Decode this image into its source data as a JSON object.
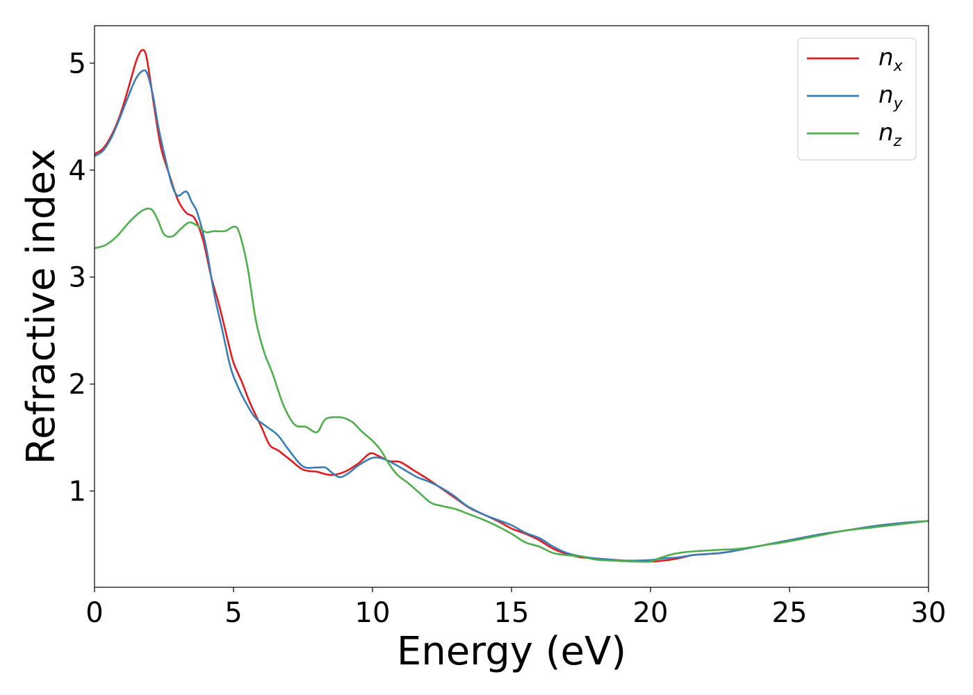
{
  "chart_data": {
    "type": "line",
    "title": "",
    "xlabel": "Energy (eV)",
    "ylabel": "Refractive index",
    "xlim": [
      0,
      30
    ],
    "ylim": [
      0.1,
      5.35
    ],
    "xticks": [
      0,
      5,
      10,
      15,
      20,
      25,
      30
    ],
    "yticks": [
      1,
      2,
      3,
      4,
      5
    ],
    "grid": false,
    "legend_position": "top-right",
    "series": [
      {
        "name": "n",
        "subscript": "x",
        "color": "#e41a1c",
        "points": [
          [
            0,
            4.15
          ],
          [
            0.3,
            4.2
          ],
          [
            0.6,
            4.32
          ],
          [
            0.9,
            4.5
          ],
          [
            1.2,
            4.75
          ],
          [
            1.5,
            5.02
          ],
          [
            1.7,
            5.12
          ],
          [
            1.85,
            5.08
          ],
          [
            2.0,
            4.85
          ],
          [
            2.2,
            4.5
          ],
          [
            2.4,
            4.2
          ],
          [
            2.7,
            3.95
          ],
          [
            3.0,
            3.72
          ],
          [
            3.3,
            3.6
          ],
          [
            3.6,
            3.55
          ],
          [
            3.9,
            3.35
          ],
          [
            4.2,
            3.0
          ],
          [
            4.5,
            2.72
          ],
          [
            4.8,
            2.4
          ],
          [
            5.0,
            2.2
          ],
          [
            5.3,
            2.02
          ],
          [
            5.6,
            1.82
          ],
          [
            6.0,
            1.6
          ],
          [
            6.3,
            1.43
          ],
          [
            6.6,
            1.38
          ],
          [
            7.0,
            1.3
          ],
          [
            7.5,
            1.2
          ],
          [
            8.0,
            1.18
          ],
          [
            8.5,
            1.15
          ],
          [
            9.0,
            1.18
          ],
          [
            9.5,
            1.26
          ],
          [
            9.9,
            1.35
          ],
          [
            10.2,
            1.33
          ],
          [
            10.6,
            1.28
          ],
          [
            11.0,
            1.27
          ],
          [
            11.5,
            1.19
          ],
          [
            12.0,
            1.11
          ],
          [
            12.5,
            1.02
          ],
          [
            13.0,
            0.93
          ],
          [
            13.5,
            0.84
          ],
          [
            14.0,
            0.78
          ],
          [
            14.5,
            0.72
          ],
          [
            15.0,
            0.65
          ],
          [
            15.5,
            0.6
          ],
          [
            16.0,
            0.54
          ],
          [
            16.5,
            0.46
          ],
          [
            17.0,
            0.41
          ],
          [
            17.5,
            0.38
          ],
          [
            18.0,
            0.37
          ],
          [
            18.5,
            0.36
          ],
          [
            19.0,
            0.35
          ],
          [
            19.5,
            0.345
          ],
          [
            20.0,
            0.34
          ],
          [
            20.5,
            0.35
          ],
          [
            21.0,
            0.37
          ],
          [
            21.5,
            0.4
          ],
          [
            22.0,
            0.41
          ],
          [
            22.5,
            0.42
          ],
          [
            23.0,
            0.44
          ],
          [
            24.0,
            0.49
          ],
          [
            25.0,
            0.54
          ],
          [
            26.0,
            0.59
          ],
          [
            27.0,
            0.63
          ],
          [
            28.0,
            0.67
          ],
          [
            29.0,
            0.7
          ],
          [
            30.0,
            0.72
          ]
        ]
      },
      {
        "name": "n",
        "subscript": "y",
        "color": "#377eb8",
        "points": [
          [
            0,
            4.13
          ],
          [
            0.3,
            4.18
          ],
          [
            0.6,
            4.3
          ],
          [
            0.9,
            4.48
          ],
          [
            1.2,
            4.68
          ],
          [
            1.5,
            4.86
          ],
          [
            1.75,
            4.93
          ],
          [
            1.9,
            4.9
          ],
          [
            2.1,
            4.7
          ],
          [
            2.3,
            4.4
          ],
          [
            2.6,
            4.05
          ],
          [
            2.8,
            3.85
          ],
          [
            3.0,
            3.76
          ],
          [
            3.3,
            3.8
          ],
          [
            3.5,
            3.7
          ],
          [
            3.7,
            3.6
          ],
          [
            4.0,
            3.3
          ],
          [
            4.3,
            2.85
          ],
          [
            4.6,
            2.5
          ],
          [
            4.9,
            2.15
          ],
          [
            5.2,
            1.95
          ],
          [
            5.5,
            1.8
          ],
          [
            5.8,
            1.68
          ],
          [
            6.2,
            1.6
          ],
          [
            6.6,
            1.52
          ],
          [
            7.0,
            1.38
          ],
          [
            7.5,
            1.23
          ],
          [
            8.0,
            1.22
          ],
          [
            8.3,
            1.22
          ],
          [
            8.5,
            1.18
          ],
          [
            8.8,
            1.13
          ],
          [
            9.1,
            1.16
          ],
          [
            9.5,
            1.24
          ],
          [
            10.0,
            1.31
          ],
          [
            10.4,
            1.3
          ],
          [
            10.8,
            1.25
          ],
          [
            11.2,
            1.19
          ],
          [
            11.6,
            1.13
          ],
          [
            12.0,
            1.09
          ],
          [
            12.4,
            1.04
          ],
          [
            12.9,
            0.96
          ],
          [
            13.4,
            0.86
          ],
          [
            14.0,
            0.78
          ],
          [
            14.5,
            0.73
          ],
          [
            15.0,
            0.68
          ],
          [
            15.5,
            0.61
          ],
          [
            16.0,
            0.56
          ],
          [
            16.5,
            0.48
          ],
          [
            17.0,
            0.42
          ],
          [
            17.5,
            0.39
          ],
          [
            18.0,
            0.37
          ],
          [
            18.5,
            0.36
          ],
          [
            19.0,
            0.35
          ],
          [
            19.5,
            0.35
          ],
          [
            20.0,
            0.355
          ],
          [
            20.5,
            0.37
          ],
          [
            21.0,
            0.38
          ],
          [
            21.5,
            0.4
          ],
          [
            22.0,
            0.41
          ],
          [
            22.5,
            0.42
          ],
          [
            23.0,
            0.44
          ],
          [
            24.0,
            0.49
          ],
          [
            25.0,
            0.54
          ],
          [
            26.0,
            0.59
          ],
          [
            27.0,
            0.63
          ],
          [
            28.0,
            0.67
          ],
          [
            29.0,
            0.7
          ],
          [
            30.0,
            0.72
          ]
        ]
      },
      {
        "name": "n",
        "subscript": "z",
        "color": "#4daf4a",
        "points": [
          [
            0,
            3.27
          ],
          [
            0.4,
            3.3
          ],
          [
            0.8,
            3.38
          ],
          [
            1.2,
            3.5
          ],
          [
            1.6,
            3.6
          ],
          [
            1.9,
            3.64
          ],
          [
            2.1,
            3.62
          ],
          [
            2.3,
            3.52
          ],
          [
            2.5,
            3.4
          ],
          [
            2.8,
            3.38
          ],
          [
            3.1,
            3.45
          ],
          [
            3.4,
            3.51
          ],
          [
            3.7,
            3.48
          ],
          [
            4.0,
            3.42
          ],
          [
            4.3,
            3.43
          ],
          [
            4.7,
            3.43
          ],
          [
            5.0,
            3.47
          ],
          [
            5.2,
            3.42
          ],
          [
            5.5,
            3.1
          ],
          [
            5.8,
            2.6
          ],
          [
            6.1,
            2.3
          ],
          [
            6.4,
            2.1
          ],
          [
            6.8,
            1.8
          ],
          [
            7.2,
            1.62
          ],
          [
            7.6,
            1.6
          ],
          [
            8.0,
            1.55
          ],
          [
            8.3,
            1.67
          ],
          [
            8.7,
            1.69
          ],
          [
            9.0,
            1.68
          ],
          [
            9.3,
            1.64
          ],
          [
            9.6,
            1.56
          ],
          [
            10.0,
            1.47
          ],
          [
            10.3,
            1.38
          ],
          [
            10.6,
            1.25
          ],
          [
            10.9,
            1.15
          ],
          [
            11.3,
            1.07
          ],
          [
            11.7,
            0.98
          ],
          [
            12.1,
            0.89
          ],
          [
            12.5,
            0.86
          ],
          [
            13.0,
            0.83
          ],
          [
            13.5,
            0.78
          ],
          [
            14.0,
            0.73
          ],
          [
            14.5,
            0.67
          ],
          [
            15.0,
            0.6
          ],
          [
            15.5,
            0.52
          ],
          [
            16.0,
            0.48
          ],
          [
            16.5,
            0.42
          ],
          [
            17.0,
            0.4
          ],
          [
            17.5,
            0.39
          ],
          [
            18.0,
            0.36
          ],
          [
            18.5,
            0.35
          ],
          [
            19.0,
            0.345
          ],
          [
            19.5,
            0.34
          ],
          [
            20.0,
            0.34
          ],
          [
            20.3,
            0.37
          ],
          [
            20.8,
            0.41
          ],
          [
            21.3,
            0.43
          ],
          [
            21.8,
            0.44
          ],
          [
            22.5,
            0.45
          ],
          [
            23.2,
            0.46
          ],
          [
            24.0,
            0.49
          ],
          [
            25.0,
            0.53
          ],
          [
            26.0,
            0.58
          ],
          [
            27.0,
            0.63
          ],
          [
            28.0,
            0.66
          ],
          [
            29.0,
            0.69
          ],
          [
            30.0,
            0.72
          ]
        ]
      }
    ]
  }
}
